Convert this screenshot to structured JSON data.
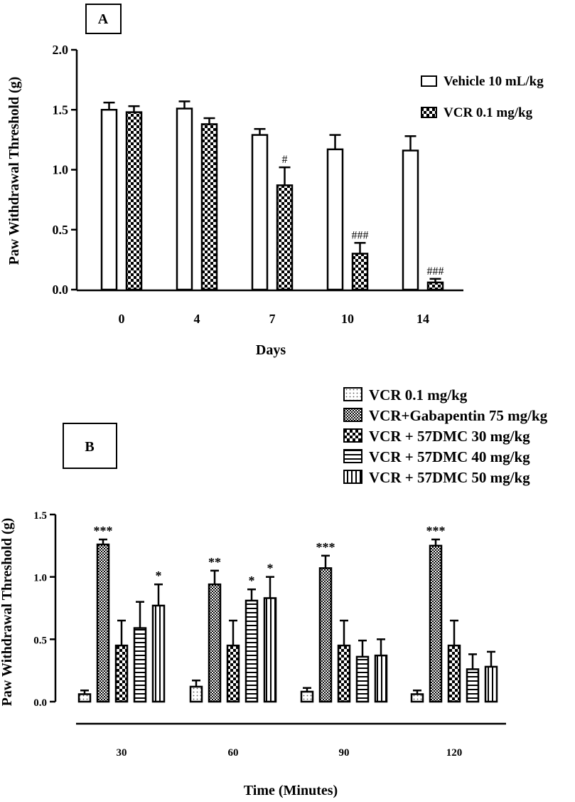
{
  "chart_data": [
    {
      "type": "bar",
      "panel_label": "A",
      "xlabel": "Days",
      "ylabel": "Paw Withdrawal Threshold (g)",
      "ylim": [
        0,
        2.0
      ],
      "yticks": [
        "0.0",
        "0.5",
        "1.0",
        "1.5",
        "2.0"
      ],
      "categories": [
        "0",
        "4",
        "7",
        "10",
        "14"
      ],
      "series": [
        {
          "name": "Vehicle 10 mL/kg",
          "pattern": "empty",
          "values": [
            1.5,
            1.51,
            1.29,
            1.17,
            1.16
          ],
          "errors": [
            0.06,
            0.06,
            0.05,
            0.12,
            0.12
          ],
          "annotations": [
            "",
            "",
            "",
            "",
            ""
          ]
        },
        {
          "name": "VCR 0.1 mg/kg",
          "pattern": "check",
          "values": [
            1.48,
            1.38,
            0.87,
            0.3,
            0.06
          ],
          "errors": [
            0.05,
            0.05,
            0.15,
            0.09,
            0.03
          ],
          "annotations": [
            "",
            "",
            "#",
            "###",
            "###"
          ]
        }
      ]
    },
    {
      "type": "bar",
      "panel_label": "B",
      "xlabel": "Time (Minutes)",
      "ylabel": "Paw Withdrawal Threshold (g)",
      "ylim": [
        0,
        1.5
      ],
      "yticks": [
        "0.0",
        "0.5",
        "1.0",
        "1.5"
      ],
      "categories": [
        "30",
        "60",
        "90",
        "120"
      ],
      "series": [
        {
          "name": "VCR 0.1 mg/kg",
          "pattern": "dots",
          "values": [
            0.06,
            0.12,
            0.08,
            0.06
          ],
          "errors": [
            0.03,
            0.05,
            0.03,
            0.03
          ],
          "annotations": [
            "",
            "",
            "",
            ""
          ]
        },
        {
          "name": "VCR+Gabapentin 75 mg/kg",
          "pattern": "dense",
          "values": [
            1.26,
            0.94,
            1.07,
            1.25
          ],
          "errors": [
            0.04,
            0.11,
            0.1,
            0.05
          ],
          "annotations": [
            "***",
            "**",
            "***",
            "***"
          ]
        },
        {
          "name": "VCR + 57DMC 30 mg/kg",
          "pattern": "check",
          "values": [
            0.45,
            0.45,
            0.45,
            0.45
          ],
          "errors": [
            0.2,
            0.2,
            0.2,
            0.2
          ],
          "annotations": [
            "",
            "",
            "",
            ""
          ]
        },
        {
          "name": "VCR + 57DMC 40 mg/kg",
          "pattern": "hlines",
          "values": [
            0.59,
            0.81,
            0.36,
            0.26
          ],
          "errors": [
            0.21,
            0.09,
            0.13,
            0.12
          ],
          "annotations": [
            "",
            "*",
            "",
            ""
          ]
        },
        {
          "name": "VCR + 57DMC 50 mg/kg",
          "pattern": "vlines",
          "values": [
            0.77,
            0.83,
            0.37,
            0.28
          ],
          "errors": [
            0.17,
            0.17,
            0.13,
            0.12
          ],
          "annotations": [
            "*",
            "*",
            "",
            ""
          ]
        }
      ]
    }
  ]
}
